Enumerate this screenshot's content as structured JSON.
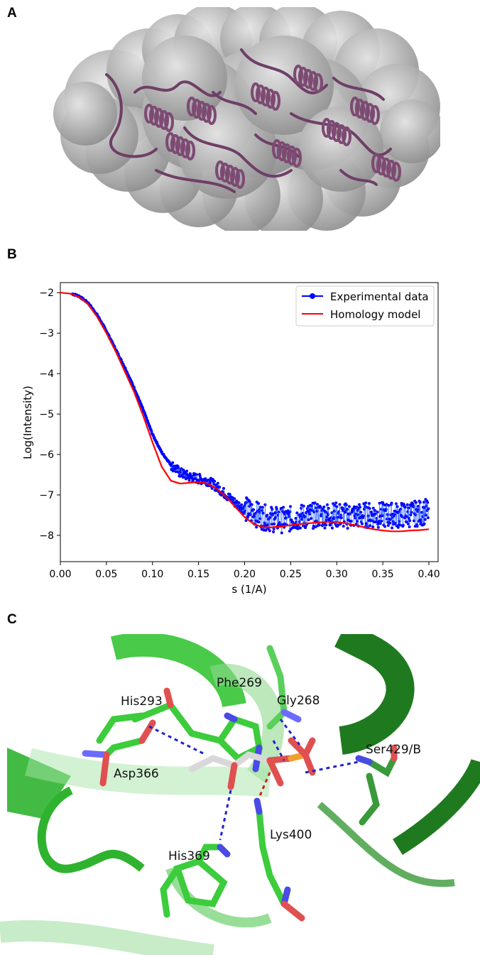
{
  "panels": {
    "a": "A",
    "b": "B",
    "c": "C"
  },
  "chart_data": {
    "type": "line",
    "xlabel": "s (1/A)",
    "ylabel": "Log(Intensity)",
    "xlim": [
      0.0,
      0.41
    ],
    "ylim": [
      -8.65,
      -1.75
    ],
    "xticks": [
      "0.00",
      "0.05",
      "0.10",
      "0.15",
      "0.20",
      "0.25",
      "0.30",
      "0.35",
      "0.40"
    ],
    "yticks": [
      "-2",
      "-3",
      "-4",
      "-5",
      "-6",
      "-7",
      "-8"
    ],
    "legend_position": "top-right",
    "grid": false,
    "series": [
      {
        "name": "Experimental data",
        "color": "#0000ff",
        "style": "markers",
        "x": [
          0.013,
          0.02,
          0.03,
          0.04,
          0.05,
          0.06,
          0.07,
          0.08,
          0.09,
          0.1,
          0.11,
          0.12,
          0.13,
          0.14,
          0.15,
          0.16,
          0.17,
          0.18,
          0.19,
          0.2,
          0.21,
          0.22,
          0.23,
          0.24,
          0.25,
          0.26,
          0.27,
          0.28,
          0.29,
          0.3,
          0.31,
          0.32,
          0.33,
          0.34,
          0.35,
          0.36,
          0.37,
          0.38,
          0.39,
          0.4
        ],
        "y": [
          -2.03,
          -2.08,
          -2.25,
          -2.55,
          -2.95,
          -3.4,
          -3.85,
          -4.35,
          -4.9,
          -5.5,
          -5.95,
          -6.25,
          -6.45,
          -6.55,
          -6.6,
          -6.65,
          -6.8,
          -7.0,
          -7.2,
          -7.35,
          -7.45,
          -7.55,
          -7.6,
          -7.62,
          -7.6,
          -7.55,
          -7.52,
          -7.5,
          -7.5,
          -7.5,
          -7.52,
          -7.52,
          -7.5,
          -7.5,
          -7.5,
          -7.5,
          -7.5,
          -7.48,
          -7.45,
          -7.4
        ]
      },
      {
        "name": "Homology model",
        "color": "#ff0000",
        "style": "line",
        "x": [
          0.0,
          0.01,
          0.02,
          0.03,
          0.04,
          0.05,
          0.06,
          0.07,
          0.08,
          0.09,
          0.1,
          0.11,
          0.12,
          0.13,
          0.14,
          0.15,
          0.16,
          0.17,
          0.18,
          0.19,
          0.2,
          0.21,
          0.22,
          0.23,
          0.24,
          0.25,
          0.26,
          0.27,
          0.28,
          0.29,
          0.3,
          0.31,
          0.32,
          0.33,
          0.34,
          0.35,
          0.36,
          0.37,
          0.38,
          0.39,
          0.4
        ],
        "y": [
          -2.0,
          -2.02,
          -2.1,
          -2.28,
          -2.6,
          -3.0,
          -3.45,
          -3.95,
          -4.45,
          -5.05,
          -5.7,
          -6.3,
          -6.65,
          -6.72,
          -6.7,
          -6.68,
          -6.72,
          -6.85,
          -7.05,
          -7.3,
          -7.55,
          -7.72,
          -7.8,
          -7.8,
          -7.78,
          -7.75,
          -7.72,
          -7.7,
          -7.68,
          -7.67,
          -7.67,
          -7.7,
          -7.75,
          -7.8,
          -7.85,
          -7.88,
          -7.9,
          -7.9,
          -7.88,
          -7.87,
          -7.85
        ]
      }
    ]
  },
  "residue_labels": [
    "His293",
    "Phe269",
    "Gly268",
    "Ser429/B",
    "Asp366",
    "His369",
    "Lys400"
  ]
}
